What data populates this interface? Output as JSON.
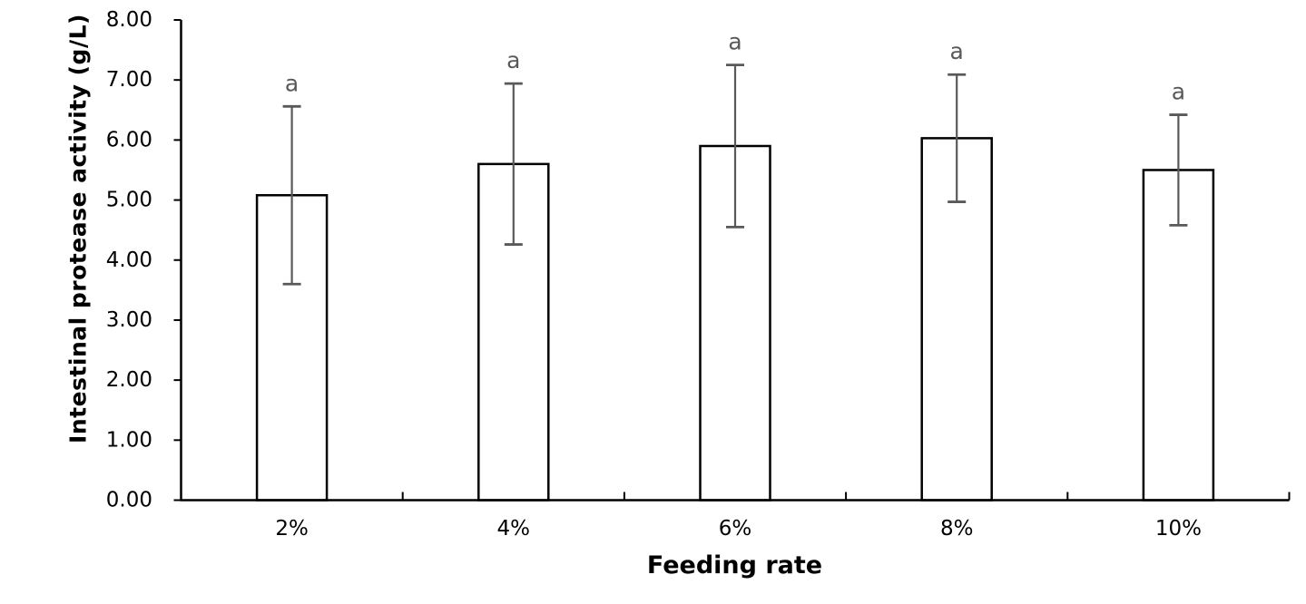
{
  "chart_data": {
    "type": "bar",
    "title": "",
    "categories": [
      "2%",
      "4%",
      "6%",
      "8%",
      "10%"
    ],
    "series": [
      {
        "name": "Intestinal protease activity",
        "values": [
          5.08,
          5.6,
          5.9,
          6.03,
          5.5
        ],
        "errors": [
          1.48,
          1.34,
          1.35,
          1.06,
          0.92
        ],
        "sig_labels": [
          "a",
          "a",
          "a",
          "a",
          "a"
        ]
      }
    ],
    "xlabel": "Feeding rate",
    "ylabel": "Intestinal protease activity (g/L)",
    "ylim": [
      0,
      8
    ],
    "ytick_step": 1,
    "ytick_decimals": 2,
    "ytick_labels": [
      "0.00",
      "1.00",
      "2.00",
      "3.00",
      "4.00",
      "5.00",
      "6.00",
      "7.00",
      "8.00"
    ],
    "grid": false,
    "legend_position": "none",
    "colors": {
      "background": "#ffffff",
      "bar_fill": "#ffffff",
      "bar_stroke": "#000000",
      "axis": "#000000",
      "tick_text": "#000000",
      "error_bar": "#595959",
      "sig_label": "#595959"
    }
  }
}
